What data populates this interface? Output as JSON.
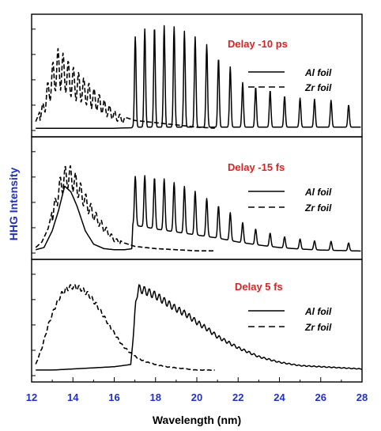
{
  "chart_data": {
    "type": "line",
    "xlabel": "Wavelength (nm)",
    "ylabel": "HHG Intensity",
    "xlim": [
      12,
      28
    ],
    "xticks": [
      "12",
      "14",
      "16",
      "18",
      "20",
      "22",
      "24",
      "26",
      "28"
    ],
    "colors": {
      "axis_labels": "#1f2fd0",
      "delay_labels": "#e02020",
      "lines": "#000000"
    },
    "panels": [
      {
        "annotation": "Delay -10 ps",
        "legend": [
          {
            "label": "Al foil",
            "style": "solid"
          },
          {
            "label": "Zr foil",
            "style": "dashed"
          }
        ],
        "al_harmonics": {
          "floor": 0.03,
          "width": 0.055,
          "centers": [
            17.02,
            17.48,
            17.95,
            18.42,
            18.9,
            19.4,
            19.92,
            20.48,
            21.05,
            21.62,
            22.22,
            22.85,
            23.55,
            24.25,
            25.0,
            25.7,
            26.5,
            27.35
          ],
          "heights": [
            0.81,
            0.88,
            0.9,
            0.91,
            0.9,
            0.86,
            0.81,
            0.74,
            0.62,
            0.54,
            0.4,
            0.36,
            0.33,
            0.28,
            0.26,
            0.25,
            0.24,
            0.2
          ]
        },
        "al_baseline": {
          "x": [
            12.2,
            14,
            16,
            16.9
          ],
          "y": [
            0.02,
            0.02,
            0.02,
            0.025
          ]
        },
        "zr_curve": {
          "x": [
            12.2,
            12.5,
            12.8,
            13.0,
            13.2,
            13.35,
            13.5,
            13.8,
            14.1,
            14.5,
            15.0,
            15.5,
            16.0,
            16.5,
            17.0,
            17.5,
            18.0,
            18.5,
            19.0,
            19.5,
            20.0,
            20.5,
            20.9
          ],
          "y": [
            0.08,
            0.22,
            0.45,
            0.6,
            0.72,
            0.75,
            0.7,
            0.62,
            0.55,
            0.48,
            0.38,
            0.28,
            0.18,
            0.12,
            0.09,
            0.08,
            0.07,
            0.06,
            0.05,
            0.04,
            0.03,
            0.025,
            0.02
          ]
        },
        "zr_harmonics": {
          "first": 12.4,
          "step": 0.25,
          "last": 16.5,
          "depth": 0.55
        }
      },
      {
        "annotation": "Delay -15 fs",
        "legend": [
          {
            "label": "Al foil",
            "style": "solid"
          },
          {
            "label": "Zr foil",
            "style": "dashed"
          }
        ],
        "al_harmonics": {
          "floor": 0.26,
          "width": 0.06,
          "centers": [
            17.02,
            17.48,
            17.95,
            18.42,
            18.9,
            19.4,
            19.92,
            20.48,
            21.05,
            21.62,
            22.22,
            22.85,
            23.55,
            24.25,
            25.0,
            25.7,
            26.5,
            27.35
          ],
          "heights": [
            0.44,
            0.46,
            0.46,
            0.46,
            0.44,
            0.42,
            0.39,
            0.34,
            0.29,
            0.25,
            0.18,
            0.14,
            0.12,
            0.1,
            0.09,
            0.08,
            0.08,
            0.07
          ]
        },
        "al_floor_curve": {
          "x": [
            17.0,
            17.5,
            18.0,
            19.0,
            20.0,
            21.0,
            22.0,
            23.0,
            24.0,
            25.0,
            26.0,
            27.0,
            28.0
          ],
          "y": [
            0.55,
            0.52,
            0.48,
            0.42,
            0.36,
            0.3,
            0.22,
            0.16,
            0.11,
            0.08,
            0.06,
            0.05,
            0.04
          ]
        },
        "al_baseline": {
          "x": [
            12.2,
            12.6,
            13.0,
            13.3,
            13.6,
            13.9,
            14.2,
            14.6,
            15.0,
            15.5,
            16.0,
            16.5,
            16.9
          ],
          "y": [
            0.03,
            0.05,
            0.2,
            0.38,
            0.6,
            0.55,
            0.42,
            0.2,
            0.08,
            0.04,
            0.03,
            0.03,
            0.04
          ]
        },
        "zr_curve": {
          "x": [
            12.2,
            12.5,
            12.8,
            13.0,
            13.2,
            13.4,
            13.6,
            13.8,
            14.0,
            14.3,
            14.6,
            15.0,
            15.5,
            16.0,
            16.5,
            17.0,
            18.0,
            19.0,
            20.0,
            20.9
          ],
          "y": [
            0.05,
            0.1,
            0.22,
            0.38,
            0.55,
            0.7,
            0.78,
            0.8,
            0.76,
            0.66,
            0.54,
            0.4,
            0.26,
            0.14,
            0.09,
            0.06,
            0.04,
            0.03,
            0.02,
            0.02
          ]
        },
        "zr_harmonics": {
          "first": 13.0,
          "step": 0.25,
          "last": 16.3,
          "depth": 0.3
        }
      },
      {
        "annotation": "Delay 5 fs",
        "legend": [
          {
            "label": "Al foil",
            "style": "solid"
          },
          {
            "label": "Zr foil",
            "style": "dashed"
          }
        ],
        "al_smooth": {
          "x": [
            12.2,
            13.0,
            14.0,
            15.0,
            16.0,
            16.8,
            16.95,
            17.05,
            17.2,
            17.5,
            18.0,
            18.5,
            19.0,
            19.5,
            20.0,
            20.5,
            21.0,
            22.0,
            23.0,
            24.0,
            25.0,
            26.0,
            27.0,
            28.0
          ],
          "y": [
            0.05,
            0.05,
            0.06,
            0.07,
            0.08,
            0.1,
            0.4,
            0.7,
            0.78,
            0.76,
            0.72,
            0.66,
            0.6,
            0.55,
            0.48,
            0.42,
            0.35,
            0.25,
            0.17,
            0.12,
            0.09,
            0.08,
            0.07,
            0.06
          ]
        },
        "zr_curve": {
          "x": [
            12.2,
            12.5,
            12.8,
            13.1,
            13.4,
            13.7,
            14.0,
            14.4,
            14.8,
            15.2,
            15.6,
            16.0,
            16.4,
            16.8,
            17.2,
            17.6,
            18.0,
            18.5,
            19.0,
            19.5,
            20.0,
            20.5,
            20.9
          ],
          "y": [
            0.1,
            0.25,
            0.45,
            0.6,
            0.72,
            0.78,
            0.8,
            0.78,
            0.72,
            0.62,
            0.5,
            0.38,
            0.27,
            0.2,
            0.15,
            0.12,
            0.1,
            0.08,
            0.07,
            0.06,
            0.05,
            0.05,
            0.05
          ]
        }
      }
    ]
  }
}
